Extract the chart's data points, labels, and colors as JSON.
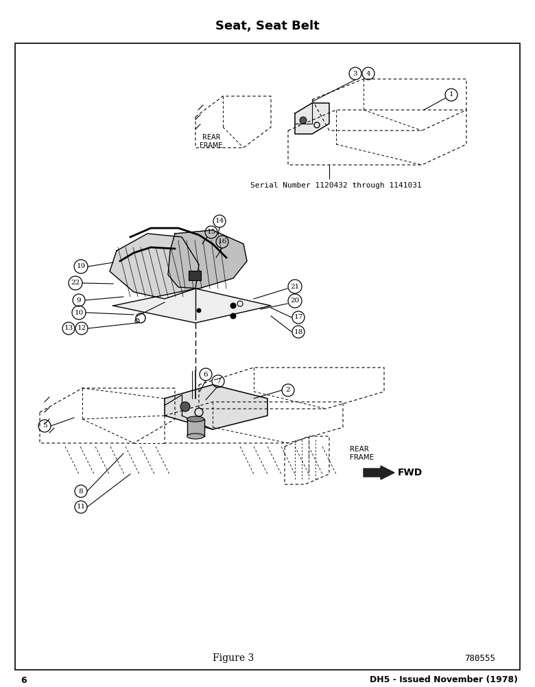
{
  "title": "Seat, Seat Belt",
  "figure_label": "Figure 3",
  "part_number": "780555",
  "page_number": "6",
  "footer_right": "DH5 - Issued November (1978)",
  "serial_number_text": "Serial Number 1120432 through 1141031",
  "fwd_label": "FWD",
  "bg_color": "#ffffff",
  "line_color": "#000000"
}
